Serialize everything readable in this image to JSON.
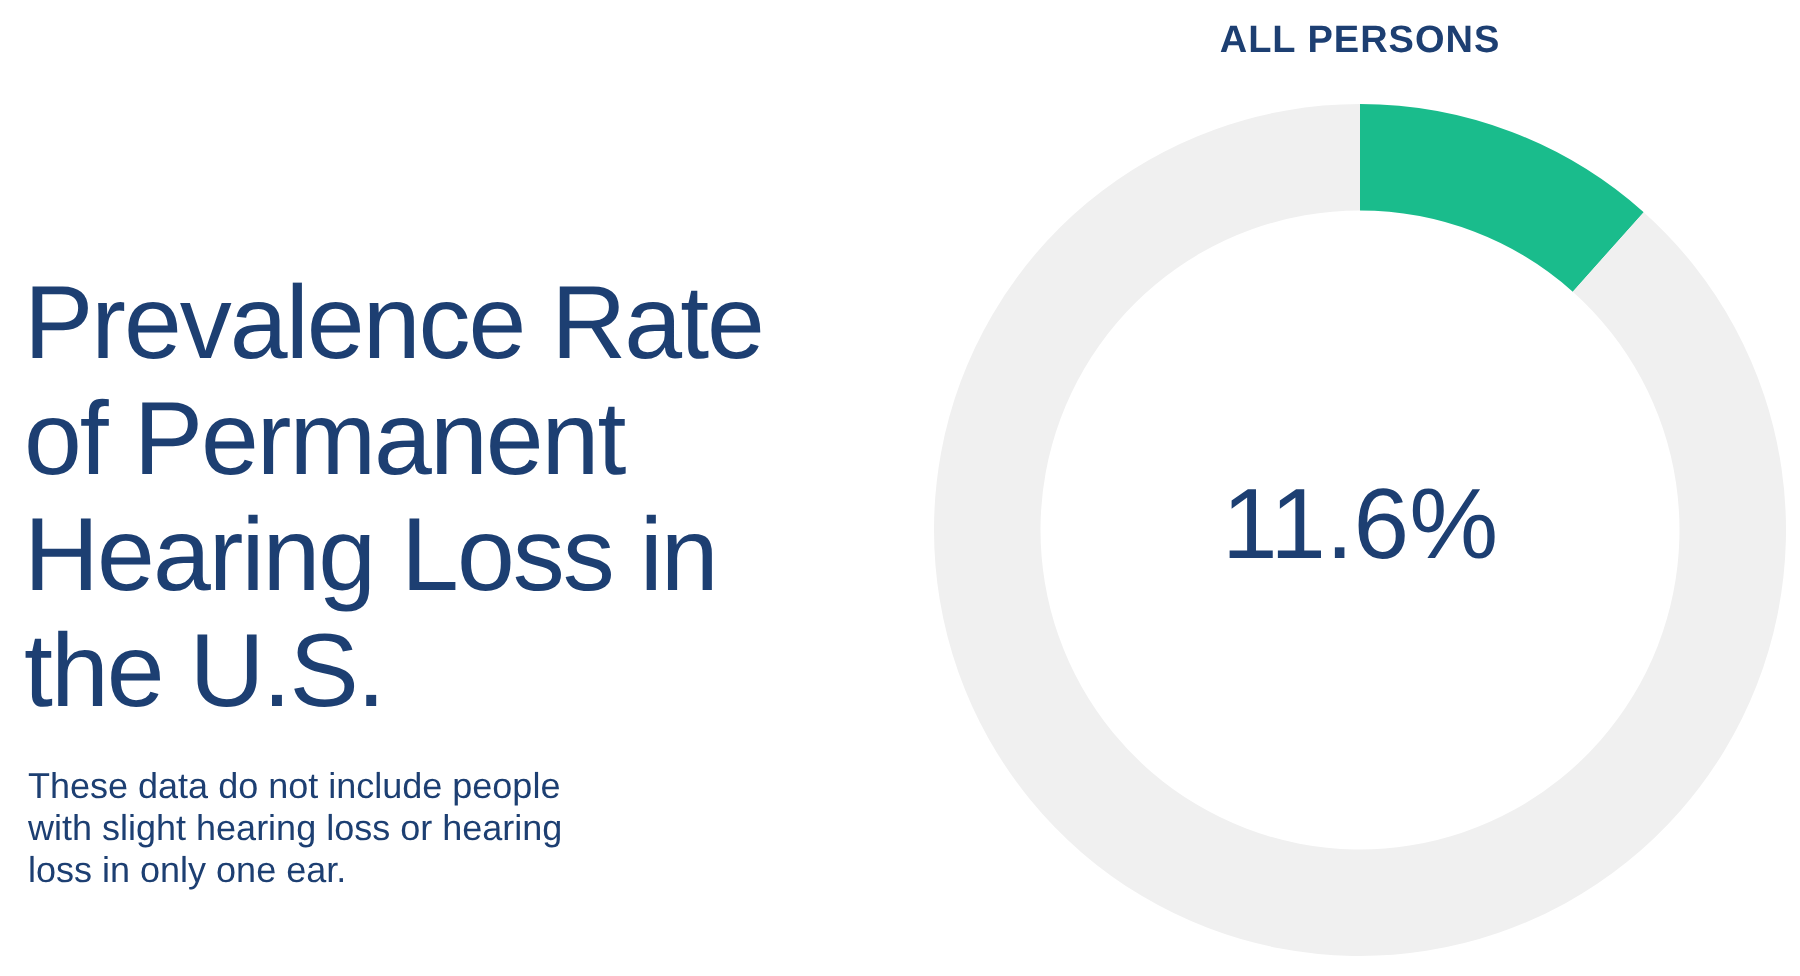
{
  "chart_data": {
    "type": "donut",
    "title": "Prevalence Rate of Permanent Hearing Loss in the U.S.",
    "subtitle": "ALL PERSONS",
    "annotations": [
      "These data do not include people with slight hearing loss or hearing loss in only one ear."
    ],
    "categories": [
      null,
      null
    ],
    "values": [
      11.6,
      88.4
    ],
    "colors": [
      "#1abc8c",
      "#f0f0f0"
    ],
    "value_labels": [
      "11.6%",
      null
    ]
  }
}
